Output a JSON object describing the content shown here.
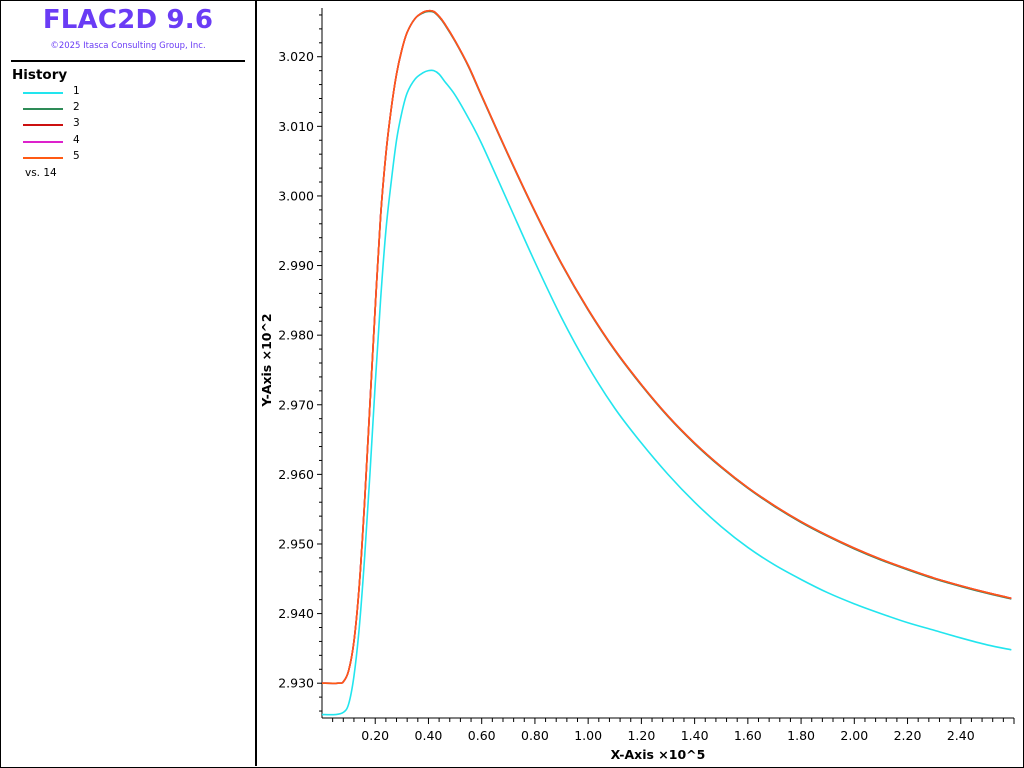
{
  "app": {
    "title": "FLAC2D 9.6",
    "copyright": "©2025 Itasca Consulting Group, Inc."
  },
  "legend": {
    "heading": "History",
    "items": [
      {
        "label": "1",
        "color": "#22e5ee"
      },
      {
        "label": "2",
        "color": "#2e8b57"
      },
      {
        "label": "3",
        "color": "#cc1010"
      },
      {
        "label": "4",
        "color": "#dd22cc"
      },
      {
        "label": "5",
        "color": "#ff5a14"
      }
    ],
    "vs_label": "vs. 14"
  },
  "chart_data": {
    "type": "line",
    "xlabel": "X-Axis ×10^5",
    "ylabel": "Y-Axis ×10^2",
    "xlim": [
      0.0,
      2.6
    ],
    "ylim": [
      2.925,
      3.027
    ],
    "x_ticks": [
      "0.20",
      "0.40",
      "0.60",
      "0.80",
      "1.00",
      "1.20",
      "1.40",
      "1.60",
      "1.80",
      "2.00",
      "2.20",
      "2.40"
    ],
    "x_tick_values": [
      0.2,
      0.4,
      0.6,
      0.8,
      1.0,
      1.2,
      1.4,
      1.6,
      1.8,
      2.0,
      2.2,
      2.4
    ],
    "y_ticks": [
      "2.930",
      "2.940",
      "2.950",
      "2.960",
      "2.970",
      "2.980",
      "2.990",
      "3.000",
      "3.010",
      "3.020"
    ],
    "y_tick_values": [
      2.93,
      2.94,
      2.95,
      2.96,
      2.97,
      2.98,
      2.99,
      3.0,
      3.01,
      3.02
    ],
    "grid": false,
    "series": [
      {
        "name": "1",
        "color": "#22e5ee",
        "x": [
          0.0,
          0.05,
          0.08,
          0.1,
          0.12,
          0.14,
          0.16,
          0.18,
          0.2,
          0.22,
          0.24,
          0.26,
          0.28,
          0.3,
          0.32,
          0.35,
          0.38,
          0.4,
          0.42,
          0.44,
          0.46,
          0.5,
          0.55,
          0.6,
          0.7,
          0.8,
          0.9,
          1.0,
          1.1,
          1.2,
          1.3,
          1.4,
          1.5,
          1.6,
          1.7,
          1.8,
          1.9,
          2.0,
          2.1,
          2.2,
          2.3,
          2.4,
          2.5,
          2.59
        ],
        "y": [
          2.9255,
          2.9255,
          2.9258,
          2.927,
          2.931,
          2.938,
          2.948,
          2.96,
          2.973,
          2.985,
          2.995,
          3.002,
          3.008,
          3.012,
          3.0148,
          3.0168,
          3.0177,
          3.018,
          3.018,
          3.0175,
          3.0165,
          3.0145,
          3.0112,
          3.0075,
          2.999,
          2.9905,
          2.9825,
          2.9755,
          2.9695,
          2.9645,
          2.96,
          2.956,
          2.9525,
          2.9495,
          2.947,
          2.9449,
          2.943,
          2.9414,
          2.94,
          2.9387,
          2.9376,
          2.9365,
          2.9355,
          2.9348
        ]
      },
      {
        "name": "2",
        "color": "#2e8b57",
        "x": [
          0.0,
          0.06,
          0.08,
          0.1,
          0.12,
          0.14,
          0.16,
          0.18,
          0.2,
          0.22,
          0.24,
          0.26,
          0.28,
          0.3,
          0.32,
          0.35,
          0.38,
          0.4,
          0.42,
          0.44,
          0.46,
          0.5,
          0.55,
          0.6,
          0.7,
          0.8,
          0.9,
          1.0,
          1.1,
          1.2,
          1.3,
          1.4,
          1.5,
          1.6,
          1.7,
          1.8,
          1.9,
          2.0,
          2.1,
          2.2,
          2.3,
          2.4,
          2.5,
          2.59
        ],
        "y": [
          2.93,
          2.93,
          2.9302,
          2.9318,
          2.936,
          2.944,
          2.956,
          2.97,
          2.984,
          2.997,
          3.006,
          3.0125,
          3.0175,
          3.021,
          3.0235,
          3.0255,
          3.0263,
          3.0265,
          3.0264,
          3.0257,
          3.0247,
          3.0222,
          3.0186,
          3.0143,
          3.0058,
          2.9977,
          2.9902,
          2.9836,
          2.9778,
          2.9728,
          2.9683,
          2.9644,
          2.961,
          2.958,
          2.9554,
          2.9531,
          2.9511,
          2.9493,
          2.9477,
          2.9463,
          2.945,
          2.9439,
          2.9429,
          2.9421
        ]
      },
      {
        "name": "3",
        "color": "#cc1010",
        "x": [
          0.0,
          0.06,
          0.08,
          0.1,
          0.12,
          0.14,
          0.16,
          0.18,
          0.2,
          0.22,
          0.24,
          0.26,
          0.28,
          0.3,
          0.32,
          0.35,
          0.38,
          0.4,
          0.42,
          0.44,
          0.46,
          0.5,
          0.55,
          0.6,
          0.7,
          0.8,
          0.9,
          1.0,
          1.1,
          1.2,
          1.3,
          1.4,
          1.5,
          1.6,
          1.7,
          1.8,
          1.9,
          2.0,
          2.1,
          2.2,
          2.3,
          2.4,
          2.5,
          2.59
        ],
        "y": [
          2.93,
          2.93,
          2.9302,
          2.9318,
          2.936,
          2.944,
          2.956,
          2.97,
          2.984,
          2.997,
          3.006,
          3.0125,
          3.0175,
          3.021,
          3.0235,
          3.0255,
          3.0264,
          3.0266,
          3.0265,
          3.0258,
          3.0248,
          3.0223,
          3.0187,
          3.0144,
          3.0059,
          2.9978,
          2.9903,
          2.9837,
          2.9779,
          2.9729,
          2.9684,
          2.9645,
          2.9611,
          2.9581,
          2.9555,
          2.9532,
          2.9512,
          2.9494,
          2.9478,
          2.9464,
          2.9451,
          2.944,
          2.943,
          2.9422
        ]
      },
      {
        "name": "4",
        "color": "#dd22cc",
        "x": [
          0.0,
          0.06,
          0.08,
          0.1,
          0.12,
          0.14,
          0.16,
          0.18,
          0.2,
          0.22,
          0.24,
          0.26,
          0.28,
          0.3,
          0.32,
          0.35,
          0.38,
          0.4,
          0.42,
          0.44,
          0.46,
          0.5,
          0.55,
          0.6,
          0.7,
          0.8,
          0.9,
          1.0,
          1.1,
          1.2,
          1.3,
          1.4,
          1.5,
          1.6,
          1.7,
          1.8,
          1.9,
          2.0,
          2.1,
          2.2,
          2.3,
          2.4,
          2.5,
          2.59
        ],
        "y": [
          2.93,
          2.93,
          2.9302,
          2.9318,
          2.936,
          2.944,
          2.956,
          2.97,
          2.984,
          2.997,
          3.006,
          3.0125,
          3.0175,
          3.021,
          3.0235,
          3.0255,
          3.0264,
          3.0266,
          3.0265,
          3.0258,
          3.0248,
          3.0223,
          3.0187,
          3.0144,
          3.0059,
          2.9978,
          2.9903,
          2.9837,
          2.9779,
          2.9729,
          2.9684,
          2.9645,
          2.9611,
          2.9581,
          2.9555,
          2.9532,
          2.9512,
          2.9494,
          2.9478,
          2.9464,
          2.9451,
          2.944,
          2.943,
          2.9422
        ]
      },
      {
        "name": "5",
        "color": "#ff5a14",
        "x": [
          0.0,
          0.06,
          0.08,
          0.1,
          0.12,
          0.14,
          0.16,
          0.18,
          0.2,
          0.22,
          0.24,
          0.26,
          0.28,
          0.3,
          0.32,
          0.35,
          0.38,
          0.4,
          0.42,
          0.44,
          0.46,
          0.5,
          0.55,
          0.6,
          0.7,
          0.8,
          0.9,
          1.0,
          1.1,
          1.2,
          1.3,
          1.4,
          1.5,
          1.6,
          1.7,
          1.8,
          1.9,
          2.0,
          2.1,
          2.2,
          2.3,
          2.4,
          2.5,
          2.59
        ],
        "y": [
          2.93,
          2.93,
          2.9302,
          2.9318,
          2.936,
          2.944,
          2.956,
          2.97,
          2.984,
          2.997,
          3.006,
          3.0125,
          3.0175,
          3.021,
          3.0235,
          3.0255,
          3.0264,
          3.0266,
          3.0265,
          3.0258,
          3.0248,
          3.0223,
          3.0187,
          3.0144,
          3.0059,
          2.9978,
          2.9903,
          2.9837,
          2.9779,
          2.9729,
          2.9684,
          2.9645,
          2.9611,
          2.9581,
          2.9555,
          2.9532,
          2.9512,
          2.9494,
          2.9478,
          2.9464,
          2.9451,
          2.944,
          2.943,
          2.9422
        ]
      }
    ]
  }
}
